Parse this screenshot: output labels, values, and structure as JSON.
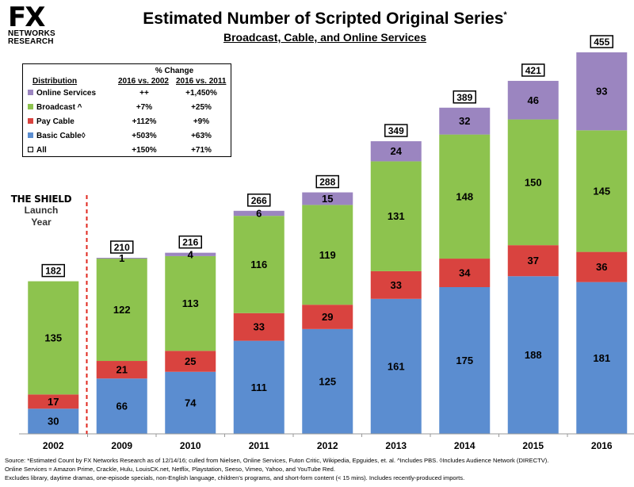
{
  "logo": {
    "main": "FX",
    "line1": "NETWORKS",
    "line2": "RESEARCH"
  },
  "header": {
    "title": "Estimated Number of Scripted Original Series",
    "title_mark": "*",
    "subtitle": "Broadcast, Cable, and Online Services"
  },
  "legend": {
    "pct_header": "% Change",
    "col_distribution": "Distribution",
    "col_a": "2016 vs. 2002",
    "col_b": "2016 vs. 2011",
    "rows": [
      {
        "label": "Online Services",
        "a": "++",
        "b": "+1,450%",
        "color": "#9b85c0"
      },
      {
        "label": "Broadcast ^",
        "a": "+7%",
        "b": "+25%",
        "color": "#8dc34e"
      },
      {
        "label": "Pay Cable",
        "a": "+112%",
        "b": "+9%",
        "color": "#d9433f"
      },
      {
        "label": "Basic Cable◊",
        "a": "+503%",
        "b": "+63%",
        "color": "#5b8dd0"
      },
      {
        "label": "All",
        "a": "+150%",
        "b": "+71%",
        "color": "#ffffff"
      }
    ]
  },
  "annotation": {
    "line1": "THE SHIELD",
    "line2": "Launch",
    "line3": "Year"
  },
  "source": {
    "line1": "Source:  *Estimated Count by FX Networks Research as of 12/14/16; culled from Nielsen, Online Services, Futon Critic, Wikipedia, Epguides, et. al.  ^Includes PBS.  ◊Includes Audience Network (DIRECTV).",
    "line2": "Online Services = Amazon Prime, Crackle, Hulu, LouisCK.net, Netflix, Playstation, Seeso, Vimeo, Yahoo, and YouTube Red.",
    "line3": "Excludes library, daytime dramas, one-episode specials, non-English language, children's programs, and short-form content (< 15 mins).  Includes recently-produced imports."
  },
  "chart_data": {
    "type": "bar",
    "stacked": true,
    "categories": [
      "2002",
      "2009",
      "2010",
      "2011",
      "2012",
      "2013",
      "2014",
      "2015",
      "2016"
    ],
    "series": [
      {
        "name": "Basic Cable",
        "color": "#5b8dd0",
        "values": [
          30,
          66,
          74,
          111,
          125,
          161,
          175,
          188,
          181
        ]
      },
      {
        "name": "Pay Cable",
        "color": "#d9433f",
        "values": [
          17,
          21,
          25,
          33,
          29,
          33,
          34,
          37,
          36
        ]
      },
      {
        "name": "Broadcast",
        "color": "#8dc34e",
        "values": [
          135,
          122,
          113,
          116,
          119,
          131,
          148,
          150,
          145
        ]
      },
      {
        "name": "Online Services",
        "color": "#9b85c0",
        "values": [
          0,
          1,
          4,
          6,
          15,
          24,
          32,
          46,
          93
        ]
      }
    ],
    "totals": [
      182,
      210,
      216,
      266,
      288,
      349,
      389,
      421,
      455
    ],
    "ylim": [
      0,
      455
    ],
    "grid": false,
    "legend_position": "top-left"
  }
}
